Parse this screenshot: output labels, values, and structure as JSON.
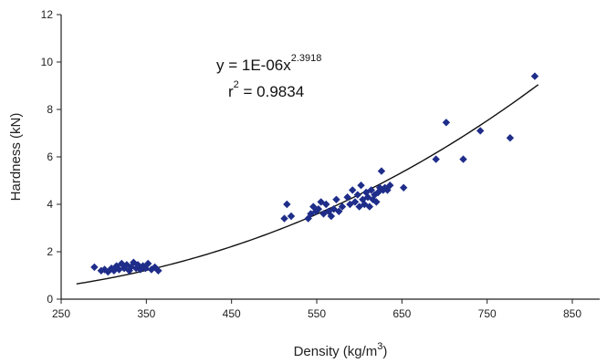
{
  "chart_data": {
    "type": "scatter",
    "title": "",
    "xlabel": "Density (kg/m",
    "xlabel_sup": "3",
    "xlabel_close": ")",
    "ylabel": "Hardness (kN)",
    "xlim": [
      250,
      850
    ],
    "ylim": [
      0,
      12
    ],
    "xticks": [
      250,
      350,
      450,
      550,
      650,
      750,
      850
    ],
    "yticks": [
      0,
      2,
      4,
      6,
      8,
      10,
      12
    ],
    "grid": false,
    "marker_color": "#1f2d8a",
    "trend_color": "#111111",
    "trendline": {
      "kind": "power",
      "coefficient": 1e-06,
      "exponent": 2.3918,
      "x_range": [
        268,
        810
      ],
      "equation_text": "y = 1E-06x",
      "equation_exponent": "2.3918",
      "r2_text_r": "r",
      "r2_text_sup": "2",
      "r2_text_value": " = 0.9834"
    },
    "points": [
      {
        "x": 289,
        "y": 1.35
      },
      {
        "x": 297,
        "y": 1.2
      },
      {
        "x": 301,
        "y": 1.25
      },
      {
        "x": 305,
        "y": 1.15
      },
      {
        "x": 309,
        "y": 1.3
      },
      {
        "x": 312,
        "y": 1.2
      },
      {
        "x": 315,
        "y": 1.4
      },
      {
        "x": 318,
        "y": 1.25
      },
      {
        "x": 321,
        "y": 1.5
      },
      {
        "x": 324,
        "y": 1.3
      },
      {
        "x": 327,
        "y": 1.45
      },
      {
        "x": 330,
        "y": 1.2
      },
      {
        "x": 332,
        "y": 1.35
      },
      {
        "x": 335,
        "y": 1.55
      },
      {
        "x": 338,
        "y": 1.3
      },
      {
        "x": 340,
        "y": 1.45
      },
      {
        "x": 343,
        "y": 1.25
      },
      {
        "x": 346,
        "y": 1.4
      },
      {
        "x": 349,
        "y": 1.3
      },
      {
        "x": 352,
        "y": 1.5
      },
      {
        "x": 356,
        "y": 1.25
      },
      {
        "x": 360,
        "y": 1.35
      },
      {
        "x": 364,
        "y": 1.2
      },
      {
        "x": 512,
        "y": 3.4
      },
      {
        "x": 515,
        "y": 4.0
      },
      {
        "x": 520,
        "y": 3.5
      },
      {
        "x": 540,
        "y": 3.4
      },
      {
        "x": 543,
        "y": 3.6
      },
      {
        "x": 546,
        "y": 3.9
      },
      {
        "x": 549,
        "y": 3.7
      },
      {
        "x": 552,
        "y": 3.8
      },
      {
        "x": 555,
        "y": 4.1
      },
      {
        "x": 558,
        "y": 3.6
      },
      {
        "x": 561,
        "y": 4.0
      },
      {
        "x": 564,
        "y": 3.7
      },
      {
        "x": 567,
        "y": 3.5
      },
      {
        "x": 570,
        "y": 3.8
      },
      {
        "x": 573,
        "y": 4.2
      },
      {
        "x": 576,
        "y": 3.7
      },
      {
        "x": 580,
        "y": 3.9
      },
      {
        "x": 586,
        "y": 4.3
      },
      {
        "x": 589,
        "y": 4.0
      },
      {
        "x": 592,
        "y": 4.6
      },
      {
        "x": 595,
        "y": 4.1
      },
      {
        "x": 598,
        "y": 4.4
      },
      {
        "x": 600,
        "y": 3.9
      },
      {
        "x": 602,
        "y": 4.8
      },
      {
        "x": 604,
        "y": 4.2
      },
      {
        "x": 606,
        "y": 4.0
      },
      {
        "x": 608,
        "y": 4.5
      },
      {
        "x": 610,
        "y": 4.3
      },
      {
        "x": 612,
        "y": 3.9
      },
      {
        "x": 614,
        "y": 4.6
      },
      {
        "x": 616,
        "y": 4.2
      },
      {
        "x": 618,
        "y": 4.4
      },
      {
        "x": 620,
        "y": 4.1
      },
      {
        "x": 622,
        "y": 4.5
      },
      {
        "x": 624,
        "y": 4.7
      },
      {
        "x": 626,
        "y": 5.4
      },
      {
        "x": 628,
        "y": 4.6
      },
      {
        "x": 630,
        "y": 4.7
      },
      {
        "x": 633,
        "y": 4.6
      },
      {
        "x": 636,
        "y": 4.8
      },
      {
        "x": 652,
        "y": 4.7
      },
      {
        "x": 690,
        "y": 5.9
      },
      {
        "x": 702,
        "y": 7.45
      },
      {
        "x": 722,
        "y": 5.9
      },
      {
        "x": 742,
        "y": 7.1
      },
      {
        "x": 777,
        "y": 6.8
      },
      {
        "x": 806,
        "y": 9.4
      }
    ]
  }
}
